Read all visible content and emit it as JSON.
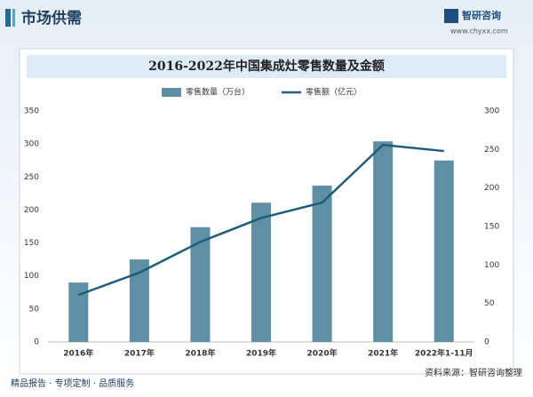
{
  "header": {
    "title": "市场供需",
    "logo": "智研咨询",
    "url": "www.chyxx.com"
  },
  "chart_data": {
    "type": "bar",
    "title": "2016-2022年中国集成灶零售数量及金额",
    "categories": [
      "2016年",
      "2017年",
      "2018年",
      "2019年",
      "2020年",
      "2021年",
      "2022年1-11月"
    ],
    "series": [
      {
        "name": "零售数量（万台）",
        "type": "bar",
        "color": "#5f8fa5",
        "values": [
          90,
          125,
          174,
          211,
          237,
          304,
          275
        ]
      },
      {
        "name": "零售额（亿元）",
        "type": "line",
        "axis": "y2",
        "color": "#1c5d78",
        "values": [
          61,
          90,
          130,
          161,
          181,
          256,
          248
        ]
      }
    ],
    "ylim": [
      0,
      350
    ],
    "yticks": [
      0,
      50,
      100,
      150,
      200,
      250,
      300,
      350
    ],
    "y2lim": [
      0,
      300
    ],
    "y2ticks": [
      0,
      50,
      100,
      150,
      200,
      250,
      300
    ]
  },
  "footer": {
    "tagline": "精品报告 · 专项定制 · 品质服务",
    "source": "资料来源：智研咨询整理"
  }
}
